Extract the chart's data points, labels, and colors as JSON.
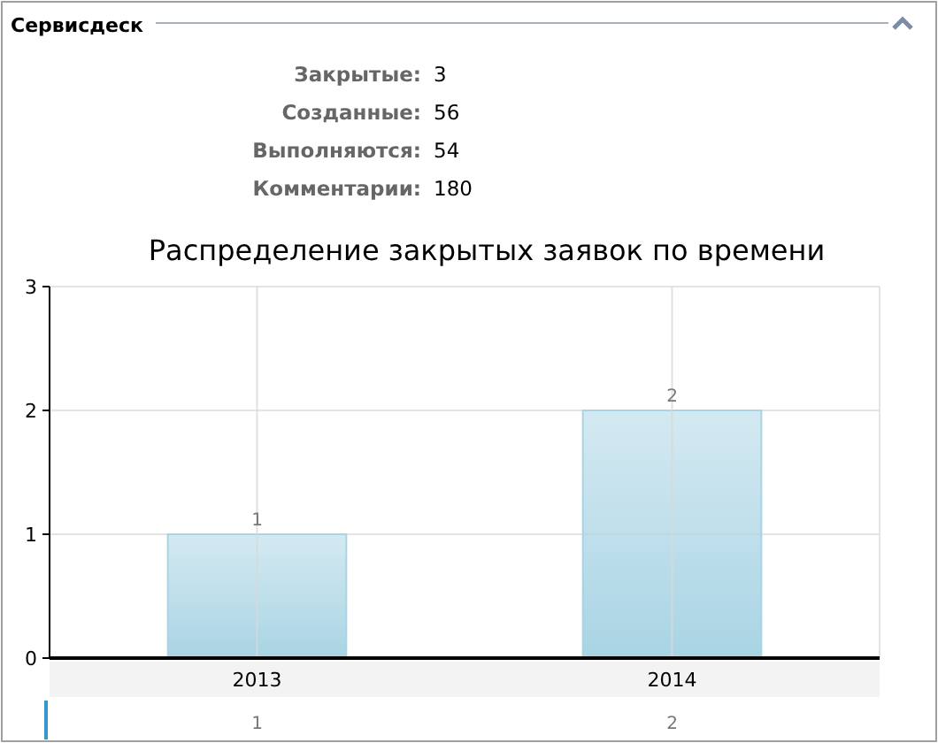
{
  "chart_data": [
    {
      "type": "other",
      "title": "Сервисдеск",
      "annotations": [
        "Закрытые: 3",
        "Созданные: 56",
        "Выполняются: 54",
        "Комментарии: 180"
      ]
    },
    {
      "type": "bar",
      "title": "Распределение закрытых заявок по времени",
      "categories": [
        "2013",
        "2014"
      ],
      "values": [
        1,
        2
      ],
      "color": "#a9d4e4",
      "ylim": [
        0,
        3
      ],
      "yticks": [
        0,
        1,
        2,
        3
      ],
      "grid": true,
      "value_labels": [
        "1",
        "2"
      ]
    },
    {
      "type": "other",
      "annotations": [
        "1",
        "2"
      ]
    }
  ]
}
